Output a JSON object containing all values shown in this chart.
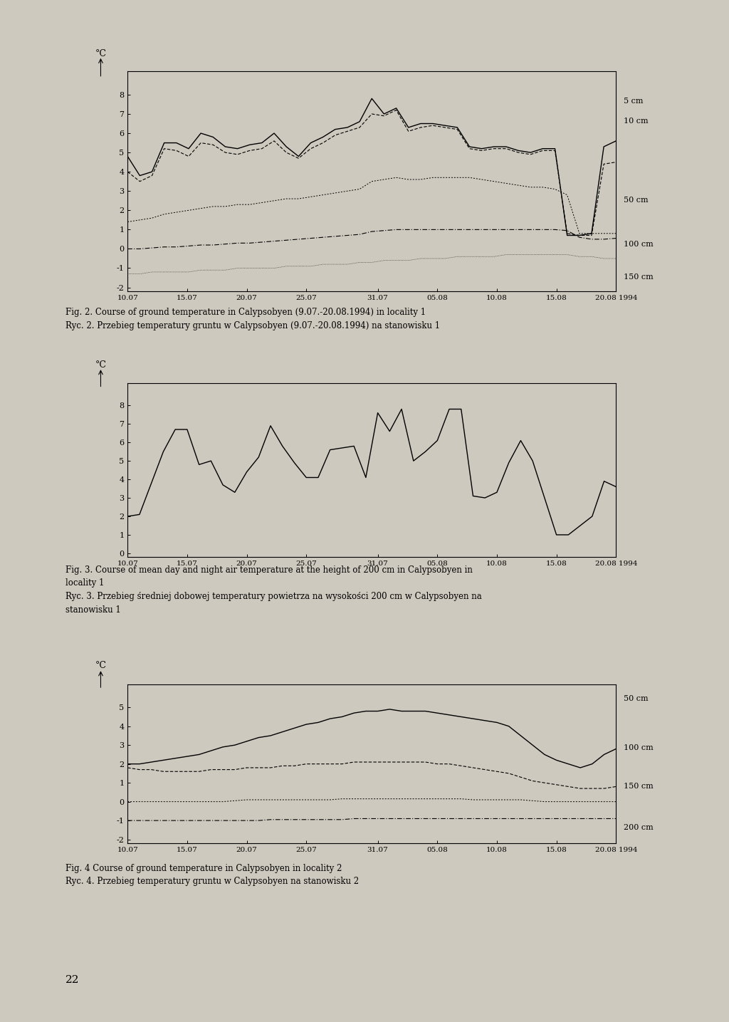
{
  "bg_color": "#cdc9be",
  "fig1_title_en": "Fig. 2. Course of ground temperature in Calypsobyen (9.07.-20.08.1994) in locality 1",
  "fig1_title_pl": "Ryc. 2. Przebieg temperatury gruntu w Calypsobyen (9.07.-20.08.1994) na stanowisku 1",
  "fig2_title_en": "Fig. 3. Course of mean day and night air temperature at the height of 200 cm in Calypsobyen in",
  "fig2_title_en2": "locality 1",
  "fig2_title_pl": "Ryc. 3. Przebieg średniej dobowej temperatury powietrza na wysokości 200 cm w Calypsobyen na",
  "fig2_title_pl2": "stanowisku 1",
  "fig3_title_en": "Fig. 4 Course of ground temperature in Calypsobyen in locality 2",
  "fig3_title_pl": "Ryc. 4. Przebieg temperatury gruntu w Calypsobyen na stanowisku 2",
  "x_ticks": [
    "10.07",
    "15.07",
    "20.07",
    "25.07",
    "31.07",
    "05.08",
    "10.08",
    "15.08",
    "20.08 1994"
  ],
  "x_values": [
    0,
    5,
    10,
    15,
    21,
    26,
    31,
    36,
    41
  ],
  "fig1_yticks": [
    -2,
    -1,
    0,
    1,
    2,
    3,
    4,
    5,
    6,
    7,
    8
  ],
  "fig2_yticks": [
    0,
    1,
    2,
    3,
    4,
    5,
    6,
    7,
    8
  ],
  "fig3_yticks": [
    -2,
    -1,
    0,
    1,
    2,
    3,
    4,
    5
  ],
  "fig1_5cm": [
    4.8,
    3.8,
    4.0,
    5.5,
    5.5,
    5.2,
    6.0,
    5.8,
    5.3,
    5.2,
    5.4,
    5.5,
    6.0,
    5.3,
    4.8,
    5.5,
    5.8,
    6.2,
    6.3,
    6.6,
    7.8,
    7.0,
    7.3,
    6.3,
    6.5,
    6.5,
    6.4,
    6.3,
    5.3,
    5.2,
    5.3,
    5.3,
    5.1,
    5.0,
    5.2,
    5.2,
    0.7,
    0.7,
    0.8,
    5.3,
    5.6
  ],
  "fig1_10cm": [
    4.0,
    3.5,
    3.8,
    5.2,
    5.1,
    4.8,
    5.5,
    5.4,
    5.0,
    4.9,
    5.1,
    5.2,
    5.6,
    5.0,
    4.7,
    5.2,
    5.5,
    5.9,
    6.1,
    6.3,
    7.0,
    6.9,
    7.2,
    6.1,
    6.3,
    6.4,
    6.3,
    6.2,
    5.2,
    5.1,
    5.2,
    5.2,
    5.0,
    4.9,
    5.1,
    5.1,
    0.8,
    0.7,
    0.7,
    4.4,
    4.5
  ],
  "fig1_50cm": [
    1.4,
    1.5,
    1.6,
    1.8,
    1.9,
    2.0,
    2.1,
    2.2,
    2.2,
    2.3,
    2.3,
    2.4,
    2.5,
    2.6,
    2.6,
    2.7,
    2.8,
    2.9,
    3.0,
    3.1,
    3.5,
    3.6,
    3.7,
    3.6,
    3.6,
    3.7,
    3.7,
    3.7,
    3.7,
    3.6,
    3.5,
    3.4,
    3.3,
    3.2,
    3.2,
    3.1,
    2.8,
    0.8,
    0.8,
    0.8,
    0.8
  ],
  "fig1_100cm": [
    0.0,
    0.0,
    0.05,
    0.1,
    0.1,
    0.15,
    0.2,
    0.2,
    0.25,
    0.3,
    0.3,
    0.35,
    0.4,
    0.45,
    0.5,
    0.55,
    0.6,
    0.65,
    0.7,
    0.75,
    0.9,
    0.95,
    1.0,
    1.0,
    1.0,
    1.0,
    1.0,
    1.0,
    1.0,
    1.0,
    1.0,
    1.0,
    1.0,
    1.0,
    1.0,
    1.0,
    0.95,
    0.6,
    0.5,
    0.5,
    0.55
  ],
  "fig1_150cm": [
    -1.3,
    -1.3,
    -1.2,
    -1.2,
    -1.2,
    -1.2,
    -1.1,
    -1.1,
    -1.1,
    -1.0,
    -1.0,
    -1.0,
    -1.0,
    -0.9,
    -0.9,
    -0.9,
    -0.8,
    -0.8,
    -0.8,
    -0.7,
    -0.7,
    -0.6,
    -0.6,
    -0.6,
    -0.5,
    -0.5,
    -0.5,
    -0.4,
    -0.4,
    -0.4,
    -0.4,
    -0.3,
    -0.3,
    -0.3,
    -0.3,
    -0.3,
    -0.3,
    -0.4,
    -0.4,
    -0.5,
    -0.5
  ],
  "fig2_air": [
    2.0,
    2.1,
    3.8,
    5.5,
    6.7,
    6.7,
    4.8,
    5.0,
    3.7,
    3.3,
    4.4,
    5.2,
    6.9,
    5.8,
    4.9,
    4.1,
    4.1,
    5.6,
    5.7,
    5.8,
    4.1,
    7.6,
    6.6,
    7.8,
    5.0,
    5.5,
    6.1,
    7.8,
    7.8,
    3.1,
    3.0,
    3.3,
    4.9,
    6.1,
    5.0,
    3.0,
    1.0,
    1.0,
    1.5,
    2.0,
    3.9,
    3.6
  ],
  "fig3_50cm": [
    2.0,
    2.0,
    2.1,
    2.2,
    2.3,
    2.4,
    2.5,
    2.7,
    2.9,
    3.0,
    3.2,
    3.4,
    3.5,
    3.7,
    3.9,
    4.1,
    4.2,
    4.4,
    4.5,
    4.7,
    4.8,
    4.8,
    4.9,
    4.8,
    4.8,
    4.8,
    4.7,
    4.6,
    4.5,
    4.4,
    4.3,
    4.2,
    4.0,
    3.5,
    3.0,
    2.5,
    2.2,
    2.0,
    1.8,
    2.0,
    2.5,
    2.8
  ],
  "fig3_100cm": [
    1.8,
    1.7,
    1.7,
    1.6,
    1.6,
    1.6,
    1.6,
    1.7,
    1.7,
    1.7,
    1.8,
    1.8,
    1.8,
    1.9,
    1.9,
    2.0,
    2.0,
    2.0,
    2.0,
    2.1,
    2.1,
    2.1,
    2.1,
    2.1,
    2.1,
    2.1,
    2.0,
    2.0,
    1.9,
    1.8,
    1.7,
    1.6,
    1.5,
    1.3,
    1.1,
    1.0,
    0.9,
    0.8,
    0.7,
    0.7,
    0.7,
    0.8
  ],
  "fig3_150cm": [
    0.0,
    0.0,
    0.0,
    0.0,
    0.0,
    0.0,
    0.0,
    0.0,
    0.0,
    0.05,
    0.1,
    0.1,
    0.1,
    0.1,
    0.1,
    0.1,
    0.1,
    0.1,
    0.15,
    0.15,
    0.15,
    0.15,
    0.15,
    0.15,
    0.15,
    0.15,
    0.15,
    0.15,
    0.15,
    0.1,
    0.1,
    0.1,
    0.1,
    0.1,
    0.05,
    0.0,
    0.0,
    0.0,
    0.0,
    0.0,
    0.0,
    0.0
  ],
  "fig3_200cm": [
    -1.0,
    -1.0,
    -1.0,
    -1.0,
    -1.0,
    -1.0,
    -1.0,
    -1.0,
    -1.0,
    -1.0,
    -1.0,
    -1.0,
    -0.95,
    -0.95,
    -0.95,
    -0.95,
    -0.95,
    -0.95,
    -0.95,
    -0.9,
    -0.9,
    -0.9,
    -0.9,
    -0.9,
    -0.9,
    -0.9,
    -0.9,
    -0.9,
    -0.9,
    -0.9,
    -0.9,
    -0.9,
    -0.9,
    -0.9,
    -0.9,
    -0.9,
    -0.9,
    -0.9,
    -0.9,
    -0.9,
    -0.9,
    -0.9
  ],
  "font_family": "serif",
  "page_number": "22"
}
